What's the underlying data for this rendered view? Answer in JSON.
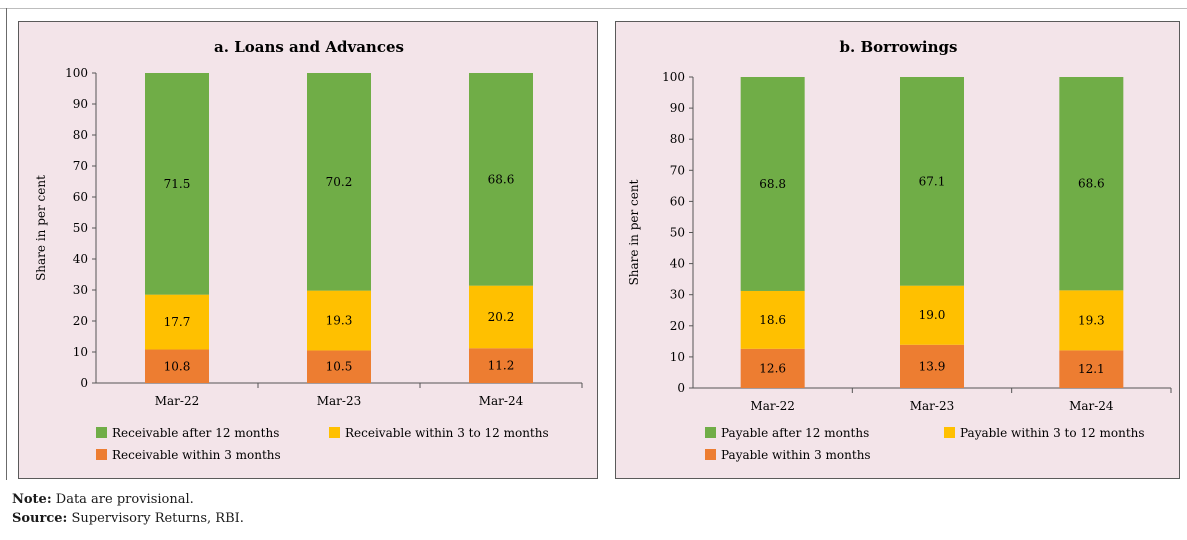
{
  "notes": {
    "note_label": "Note:",
    "note_text": "Data are provisional.",
    "source_label": "Source:",
    "source_text": "Supervisory Returns, RBI."
  },
  "colors": {
    "long": "#70ad47",
    "mid": "#ffc000",
    "short": "#ed7d31",
    "panel_bg": "#f3e4e9"
  },
  "chart_data": [
    {
      "type": "bar",
      "stacked": true,
      "title": "a. Loans and Advances",
      "xlabel": "",
      "ylabel": "Share in per cent",
      "ylim": [
        0,
        100
      ],
      "yticks": [
        0,
        10,
        20,
        30,
        40,
        50,
        60,
        70,
        80,
        90,
        100
      ],
      "categories": [
        "Mar-22",
        "Mar-23",
        "Mar-24"
      ],
      "series": [
        {
          "name": "Receivable within 3 months",
          "values": [
            10.8,
            10.5,
            11.2
          ],
          "color": "#ed7d31"
        },
        {
          "name": "Receivable within 3 to 12 months",
          "values": [
            17.7,
            19.3,
            20.2
          ],
          "color": "#ffc000"
        },
        {
          "name": "Receivable after 12 months",
          "values": [
            71.5,
            70.2,
            68.6
          ],
          "color": "#70ad47"
        }
      ],
      "legend_order": [
        2,
        1,
        0
      ],
      "legend_position": "bottom"
    },
    {
      "type": "bar",
      "stacked": true,
      "title": "b. Borrowings",
      "xlabel": "",
      "ylabel": "Share in per cent",
      "ylim": [
        0,
        100
      ],
      "yticks": [
        0,
        10,
        20,
        30,
        40,
        50,
        60,
        70,
        80,
        90,
        100
      ],
      "categories": [
        "Mar-22",
        "Mar-23",
        "Mar-24"
      ],
      "series": [
        {
          "name": "Payable within 3 months",
          "values": [
            12.6,
            13.9,
            12.1
          ],
          "color": "#ed7d31"
        },
        {
          "name": "Payable within 3 to 12 months",
          "values": [
            18.6,
            19.0,
            19.3
          ],
          "color": "#ffc000"
        },
        {
          "name": "Payable after 12 months",
          "values": [
            68.8,
            67.1,
            68.6
          ],
          "color": "#70ad47"
        }
      ],
      "legend_order": [
        2,
        1,
        0
      ],
      "legend_position": "bottom"
    }
  ]
}
